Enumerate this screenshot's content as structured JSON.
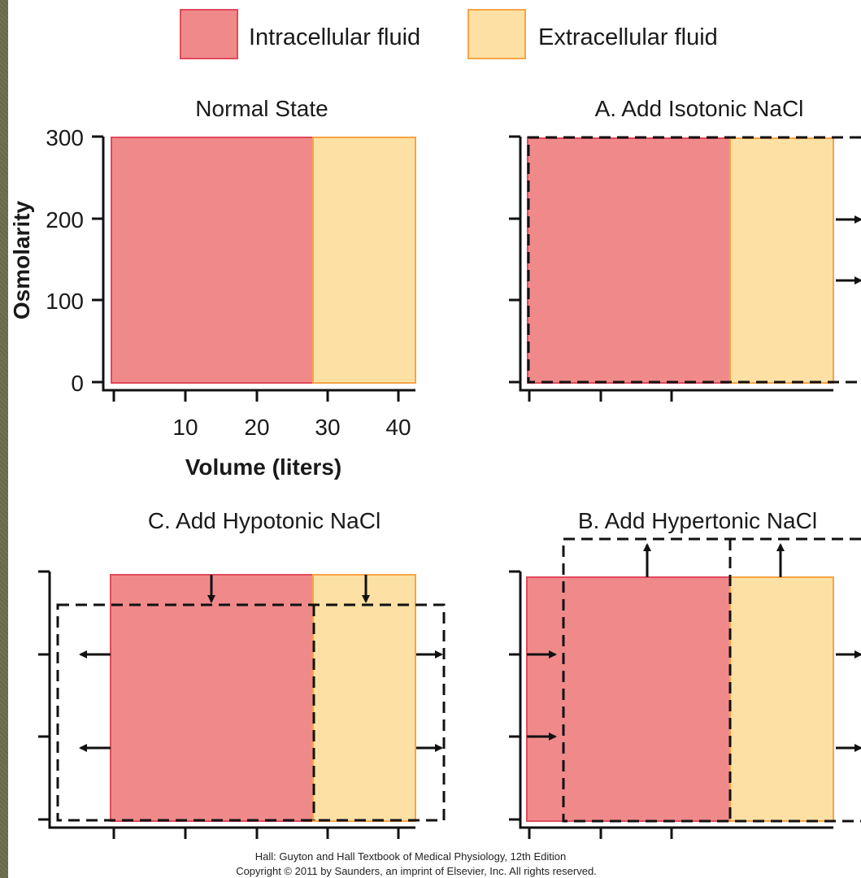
{
  "legend": {
    "items": [
      {
        "label": "Intracellular fluid",
        "color": "#f08a8a",
        "border": "#e2495b"
      },
      {
        "label": "Extracellular fluid",
        "color": "#fde0a3",
        "border": "#f6a447"
      }
    ]
  },
  "panels": {
    "normal": {
      "title": "Normal State"
    },
    "a": {
      "title": "A. Add Isotonic NaCl"
    },
    "c": {
      "title": "C. Add Hypotonic NaCl"
    },
    "b": {
      "title": "B. Add Hypertonic NaCl"
    }
  },
  "axes": {
    "ylabel": "Osmolarity",
    "xlabel": "Volume (liters)",
    "yticks": [
      "0",
      "100",
      "200",
      "300"
    ],
    "xticks": [
      "10",
      "20",
      "30",
      "40"
    ]
  },
  "credit": {
    "line1": "Hall: Guyton and Hall Textbook of Medical Physiology, 12th Edition",
    "line2": "Copyright © 2011 by Saunders, an imprint of Elsevier, Inc. All rights reserved."
  },
  "colors": {
    "icf": "#f08a8a",
    "icf_border": "#e2495b",
    "ecf": "#fde0a3",
    "ecf_border": "#f6a447",
    "frame": "#6e6c4e"
  }
}
